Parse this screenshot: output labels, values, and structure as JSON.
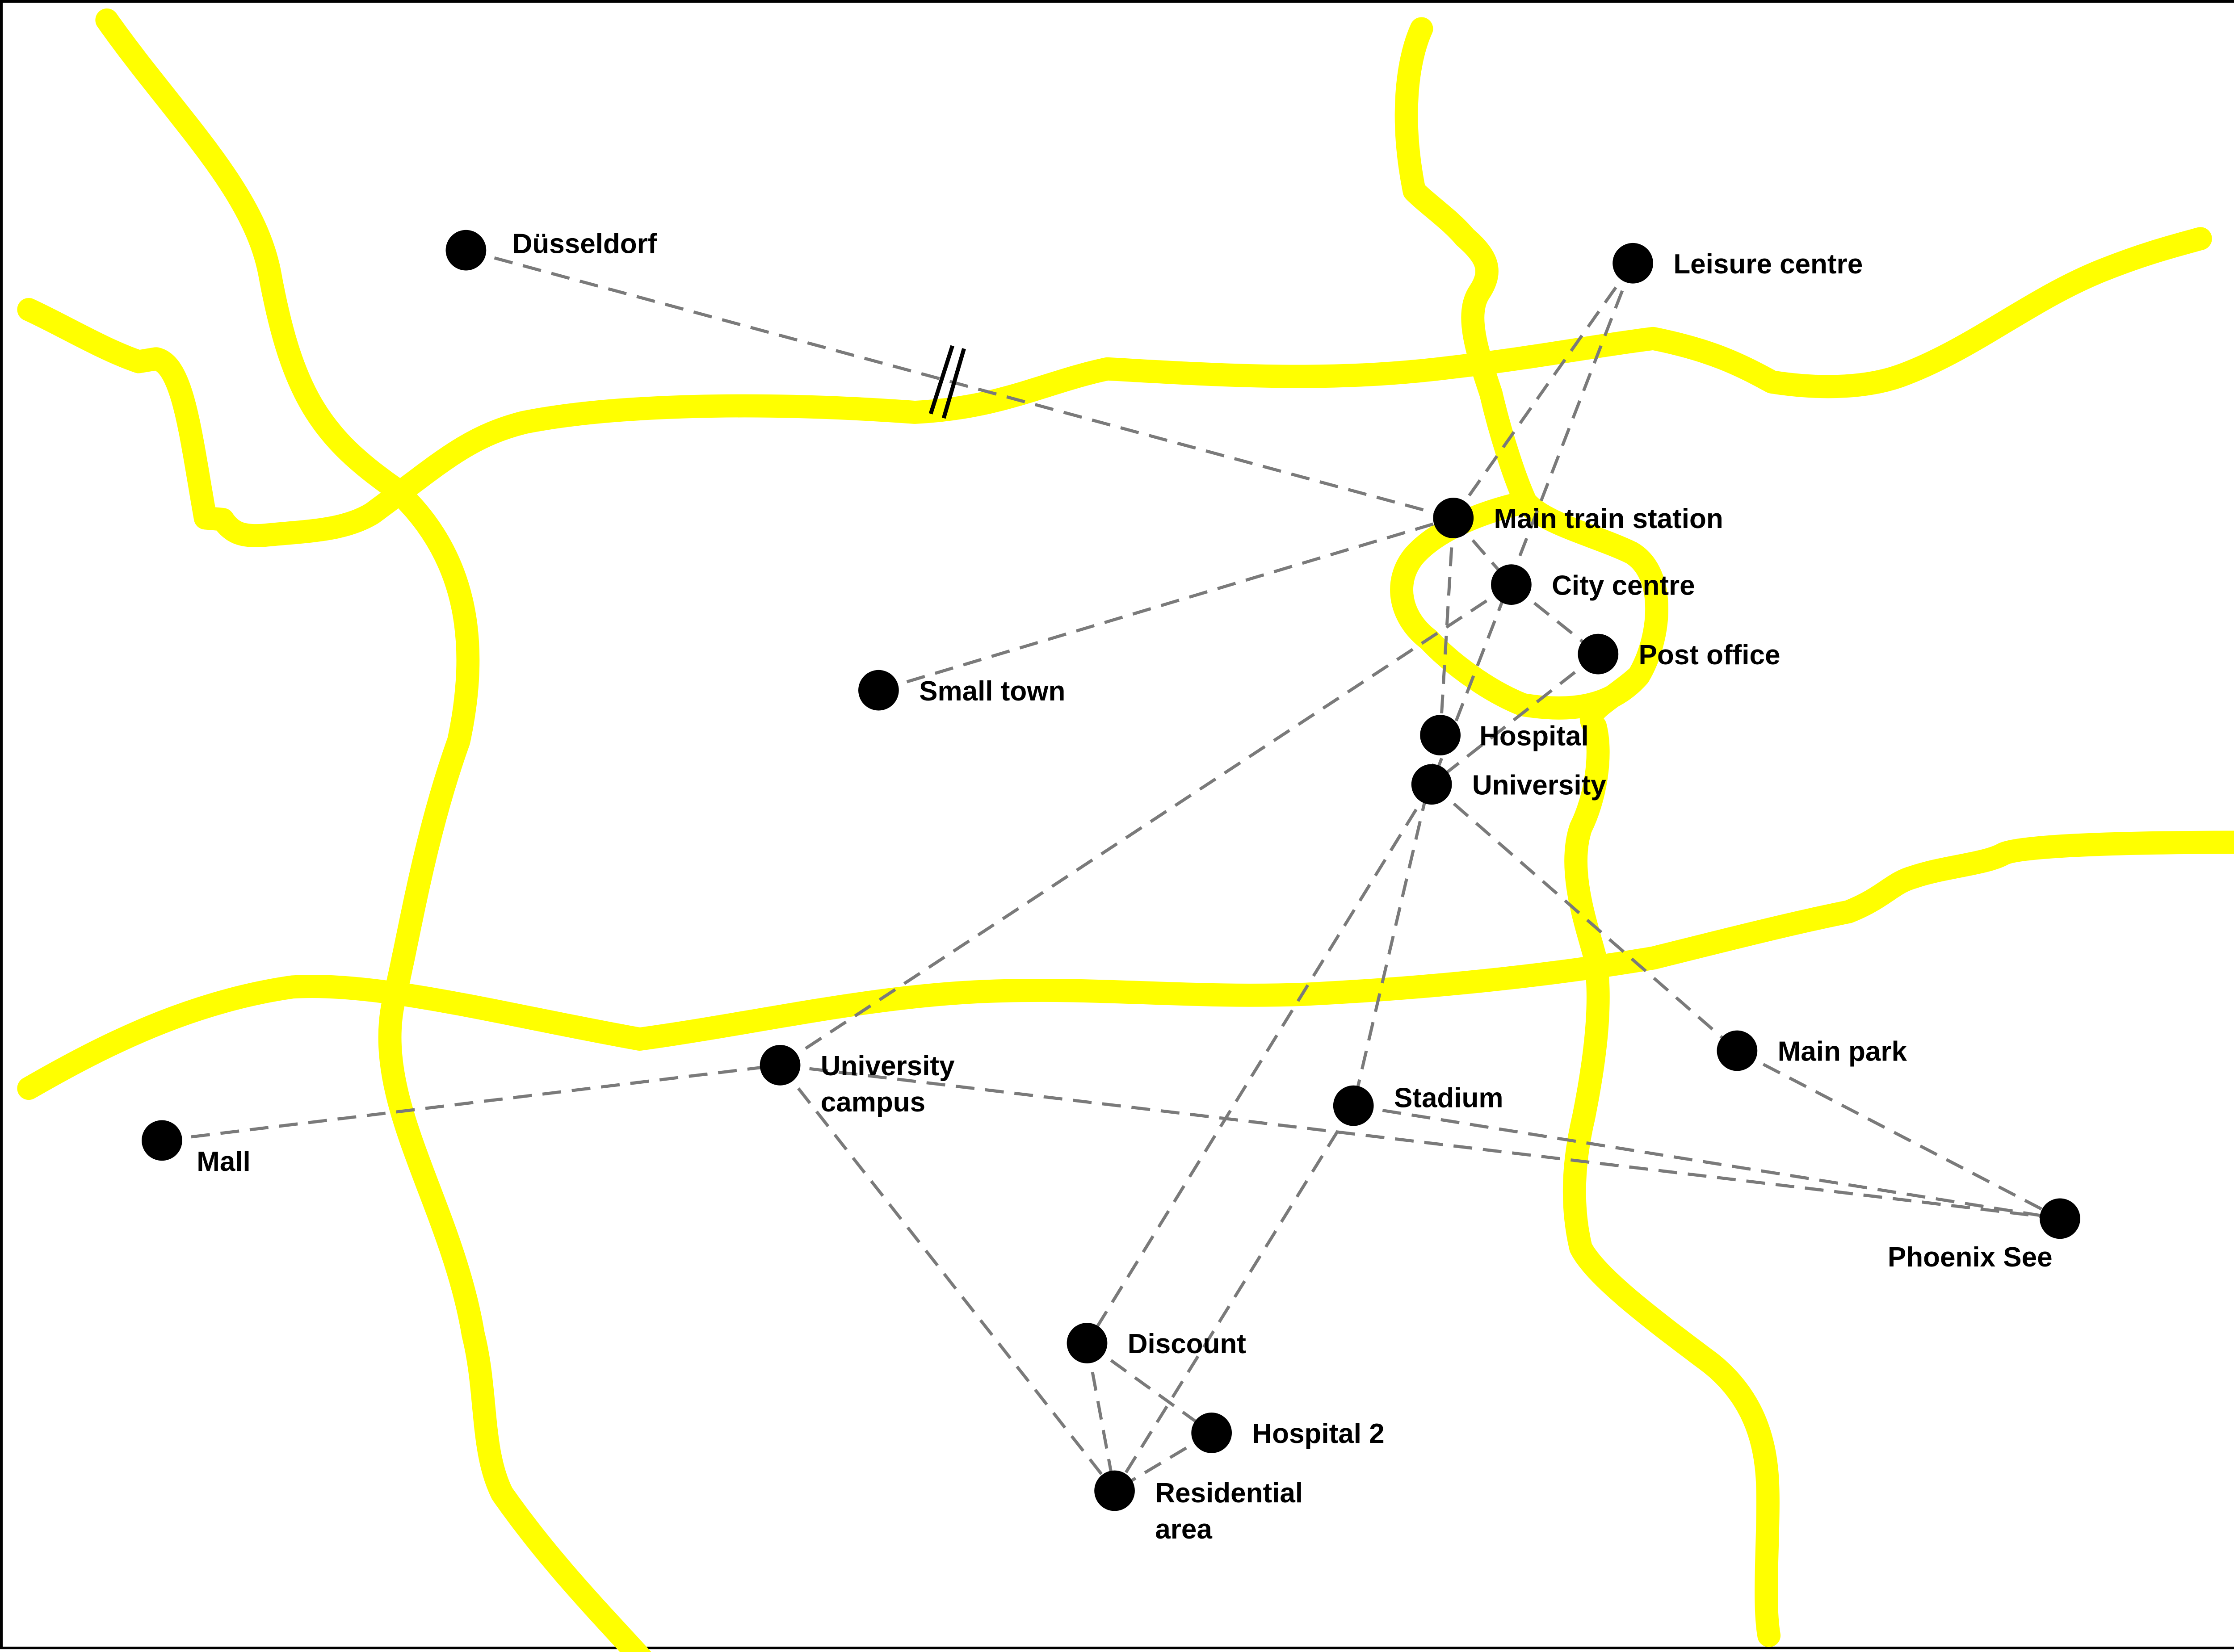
{
  "map": {
    "colors": {
      "road": "#ffff00",
      "link": "#7a7a7a",
      "node": "#000000",
      "label": "#000000",
      "border": "#000000",
      "background": "#ffffff"
    },
    "nodes": [
      {
        "id": "dusseldorf",
        "label": "Düsseldorf"
      },
      {
        "id": "leisure",
        "label": "Leisure centre"
      },
      {
        "id": "main_station",
        "label": "Main train station"
      },
      {
        "id": "city_centre",
        "label": "City centre"
      },
      {
        "id": "post_office",
        "label": "Post office"
      },
      {
        "id": "small_town",
        "label": "Small town"
      },
      {
        "id": "hospital",
        "label": "Hospital"
      },
      {
        "id": "university",
        "label": "University"
      },
      {
        "id": "uni_campus",
        "label": "University campus",
        "label_lines": [
          "University",
          "campus"
        ]
      },
      {
        "id": "mall",
        "label": "Mall"
      },
      {
        "id": "stadium",
        "label": "Stadium"
      },
      {
        "id": "main_park",
        "label": "Main park"
      },
      {
        "id": "phoenix",
        "label": "Phoenix See"
      },
      {
        "id": "discount",
        "label": "Discount"
      },
      {
        "id": "hospital2",
        "label": "Hospital 2"
      },
      {
        "id": "residential",
        "label": "Residential area",
        "label_lines": [
          "Residential",
          "area"
        ]
      }
    ],
    "links": [
      {
        "from": "dusseldorf",
        "to": "main_station",
        "interrupted": true
      },
      {
        "from": "small_town",
        "to": "main_station"
      },
      {
        "from": "leisure",
        "to": "main_station"
      },
      {
        "from": "leisure",
        "to": "university"
      },
      {
        "from": "main_station",
        "to": "city_centre"
      },
      {
        "from": "main_station",
        "to": "hospital"
      },
      {
        "from": "city_centre",
        "to": "post_office"
      },
      {
        "from": "city_centre",
        "to": "uni_campus"
      },
      {
        "from": "post_office",
        "to": "university"
      },
      {
        "from": "university",
        "to": "main_park"
      },
      {
        "from": "university",
        "to": "discount"
      },
      {
        "from": "main_park",
        "to": "phoenix"
      },
      {
        "from": "hospital",
        "to": "stadium"
      },
      {
        "from": "stadium",
        "to": "phoenix"
      },
      {
        "from": "stadium",
        "to": "residential"
      },
      {
        "from": "uni_campus",
        "to": "phoenix"
      },
      {
        "from": "uni_campus",
        "to": "residential"
      },
      {
        "from": "mall",
        "to": "uni_campus"
      },
      {
        "from": "discount",
        "to": "residential"
      },
      {
        "from": "discount",
        "to": "hospital2"
      },
      {
        "from": "hospital2",
        "to": "residential"
      }
    ]
  }
}
